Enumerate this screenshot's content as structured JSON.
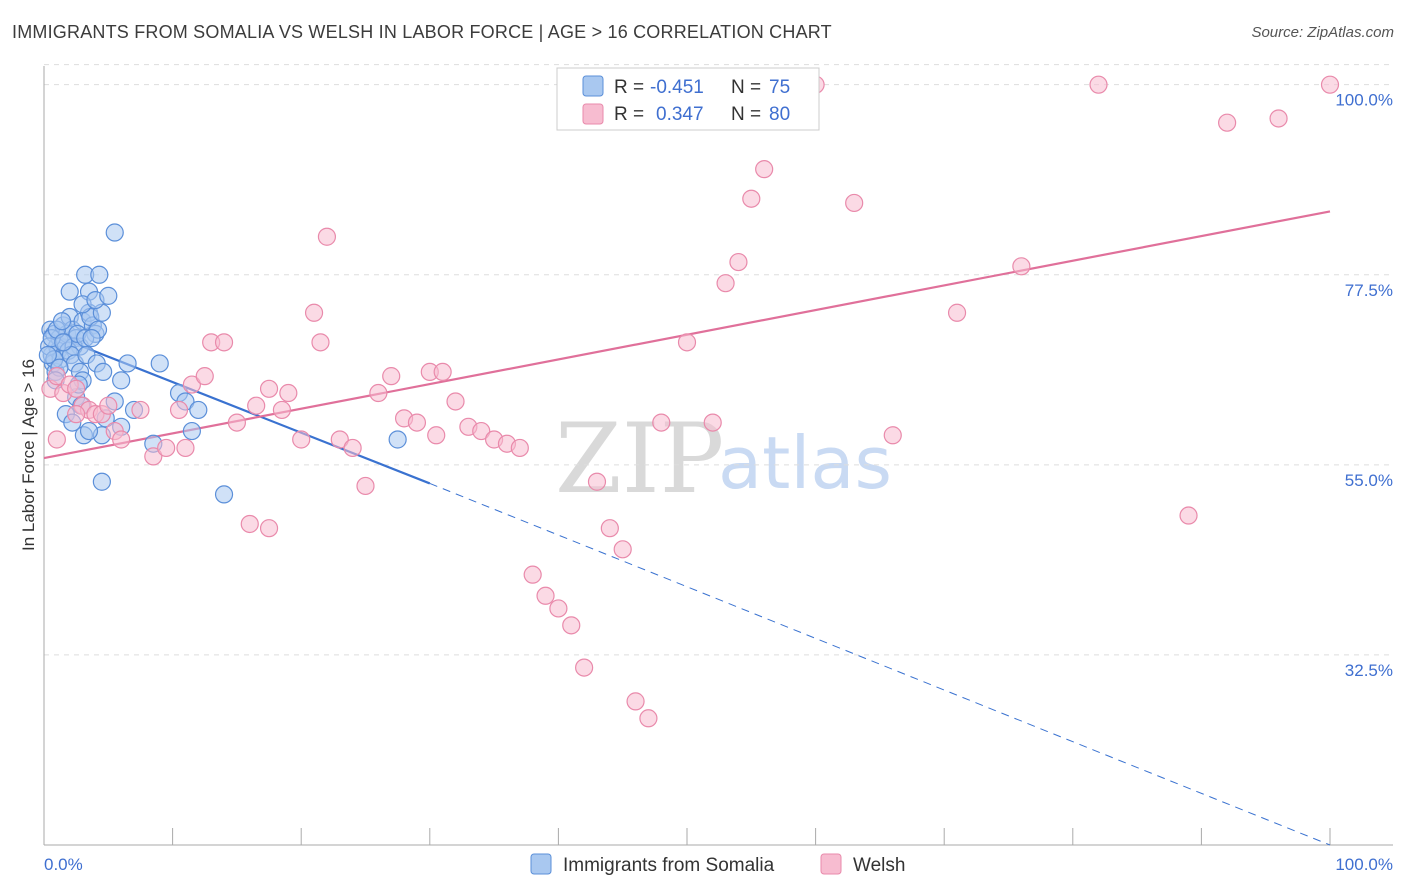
{
  "title": "IMMIGRANTS FROM SOMALIA VS WELSH IN LABOR FORCE | AGE > 16 CORRELATION CHART",
  "source": "Source: ZipAtlas.com",
  "watermark": {
    "zip": "ZIP",
    "atlas": "atlas"
  },
  "colors": {
    "blue_fill": "#a9c8f0",
    "blue_stroke": "#5b8fd9",
    "blue_line": "#3a72d0",
    "pink_fill": "#f7bcd0",
    "pink_stroke": "#e98aab",
    "pink_line": "#e0709a",
    "grid": "#dddddd",
    "tick_text": "#3f6fd0"
  },
  "legend": {
    "series1": {
      "r_label": "R =",
      "r_value": "-0.451",
      "n_label": "N =",
      "n_value": "75"
    },
    "series2": {
      "r_label": "R =",
      "r_value": "0.347",
      "n_label": "N =",
      "n_value": "80"
    }
  },
  "chart_data": {
    "type": "scatter",
    "title": "IMMIGRANTS FROM SOMALIA VS WELSH IN LABOR FORCE | AGE > 16 CORRELATION CHART",
    "xlabel": "",
    "ylabel": "In Labor Force | Age > 16",
    "xlim": [
      0,
      100
    ],
    "ylim": [
      10,
      101.5
    ],
    "x_tick_labels": [
      "0.0%",
      "100.0%"
    ],
    "y_ticks": [
      32.5,
      55.0,
      77.5,
      100.0
    ],
    "y_tick_labels": [
      "32.5%",
      "55.0%",
      "77.5%",
      "100.0%"
    ],
    "grid": "horizontal dashed",
    "legend_position": "top-center",
    "series": [
      {
        "name": "Immigrants from Somalia",
        "r": -0.451,
        "n": 75,
        "trend": {
          "x0": 0,
          "y0": 70.8,
          "x1": 30,
          "y1": 52.8,
          "dashed_to_x": 100,
          "dashed_to_y": 10.0
        },
        "points": [
          [
            0.5,
            71
          ],
          [
            0.8,
            70.5
          ],
          [
            1.0,
            69
          ],
          [
            1.2,
            70
          ],
          [
            0.6,
            68
          ],
          [
            1.5,
            71.5
          ],
          [
            1.8,
            70.5
          ],
          [
            2.0,
            72.5
          ],
          [
            2.2,
            71
          ],
          [
            2.5,
            70
          ],
          [
            0.7,
            67
          ],
          [
            1.1,
            68.5
          ],
          [
            1.6,
            69.5
          ],
          [
            2.8,
            69
          ],
          [
            3.0,
            72
          ],
          [
            3.5,
            73
          ],
          [
            3.8,
            71.5
          ],
          [
            4.0,
            70.5
          ],
          [
            0.9,
            66
          ],
          [
            1.3,
            67.5
          ],
          [
            1.9,
            68.5
          ],
          [
            2.3,
            69
          ],
          [
            2.6,
            70.5
          ],
          [
            3.2,
            70
          ],
          [
            3.6,
            72.5
          ],
          [
            4.2,
            71
          ],
          [
            4.5,
            73
          ],
          [
            2.0,
            75.5
          ],
          [
            3.5,
            75.5
          ],
          [
            3.2,
            77.5
          ],
          [
            4.3,
            77.5
          ],
          [
            3.0,
            74
          ],
          [
            4.0,
            74.5
          ],
          [
            0.4,
            69
          ],
          [
            0.6,
            70
          ],
          [
            1.0,
            71
          ],
          [
            1.4,
            72
          ],
          [
            2.1,
            68
          ],
          [
            2.4,
            67
          ],
          [
            2.8,
            66
          ],
          [
            3.3,
            68
          ],
          [
            3.7,
            70
          ],
          [
            4.1,
            67
          ],
          [
            4.6,
            66
          ],
          [
            5.0,
            75
          ],
          [
            6.5,
            67
          ],
          [
            9.0,
            67
          ],
          [
            6.0,
            65
          ],
          [
            3.0,
            65
          ],
          [
            2.5,
            63
          ],
          [
            1.7,
            61
          ],
          [
            2.9,
            62
          ],
          [
            4.8,
            60.5
          ],
          [
            5.5,
            62.5
          ],
          [
            7.0,
            61.5
          ],
          [
            10.5,
            63.5
          ],
          [
            11.0,
            62.5
          ],
          [
            11.5,
            59
          ],
          [
            12.0,
            61.5
          ],
          [
            5.5,
            82.5
          ],
          [
            0.8,
            67.5
          ],
          [
            1.2,
            66.5
          ],
          [
            2.7,
            64.5
          ],
          [
            0.3,
            68
          ],
          [
            0.9,
            65
          ],
          [
            1.5,
            69.5
          ],
          [
            3.1,
            58.5
          ],
          [
            4.5,
            58.5
          ],
          [
            8.5,
            57.5
          ],
          [
            4.5,
            53
          ],
          [
            14.0,
            51.5
          ],
          [
            27.5,
            58
          ],
          [
            3.5,
            59
          ],
          [
            6.0,
            59.5
          ],
          [
            2.2,
            60
          ]
        ]
      },
      {
        "name": "Welsh",
        "r": 0.347,
        "n": 80,
        "trend": {
          "x0": 0,
          "y0": 55.8,
          "x1": 100,
          "y1": 85.0
        },
        "points": [
          [
            0.5,
            64
          ],
          [
            1.0,
            65.5
          ],
          [
            1.5,
            63.5
          ],
          [
            2.0,
            64.5
          ],
          [
            2.5,
            64
          ],
          [
            3.0,
            62
          ],
          [
            3.5,
            61.5
          ],
          [
            4.0,
            61
          ],
          [
            4.5,
            61
          ],
          [
            5.5,
            59
          ],
          [
            6.0,
            58
          ],
          [
            7.5,
            61.5
          ],
          [
            8.5,
            56
          ],
          [
            9.5,
            57
          ],
          [
            10.5,
            61.5
          ],
          [
            11.0,
            57
          ],
          [
            11.5,
            64.5
          ],
          [
            12.5,
            65.5
          ],
          [
            13.0,
            69.5
          ],
          [
            14.0,
            69.5
          ],
          [
            15.0,
            60
          ],
          [
            16.5,
            62
          ],
          [
            17.5,
            64
          ],
          [
            18.5,
            61.5
          ],
          [
            19.0,
            63.5
          ],
          [
            20.0,
            58
          ],
          [
            21.0,
            73
          ],
          [
            21.5,
            69.5
          ],
          [
            22.0,
            82
          ],
          [
            23.0,
            58
          ],
          [
            24.0,
            57
          ],
          [
            25.0,
            52.5
          ],
          [
            26.0,
            63.5
          ],
          [
            27.0,
            65.5
          ],
          [
            28.0,
            60.5
          ],
          [
            29.0,
            60
          ],
          [
            30.5,
            58.5
          ],
          [
            30.0,
            66
          ],
          [
            31.0,
            66
          ],
          [
            32.0,
            62.5
          ],
          [
            33.0,
            59.5
          ],
          [
            34.0,
            59
          ],
          [
            35.0,
            58
          ],
          [
            36.0,
            57.5
          ],
          [
            37.0,
            57
          ],
          [
            38.0,
            42
          ],
          [
            39.0,
            39.5
          ],
          [
            40.0,
            38
          ],
          [
            41.0,
            36
          ],
          [
            42.0,
            31
          ],
          [
            43.0,
            53
          ],
          [
            44.0,
            47.5
          ],
          [
            45.0,
            45
          ],
          [
            46.0,
            27
          ],
          [
            47.0,
            25
          ],
          [
            48.0,
            60
          ],
          [
            50.0,
            69.5
          ],
          [
            52.0,
            60
          ],
          [
            53.0,
            76.5
          ],
          [
            54.0,
            79
          ],
          [
            55.0,
            86.5
          ],
          [
            56.0,
            90
          ],
          [
            57.0,
            100
          ],
          [
            58.0,
            100
          ],
          [
            59.0,
            100
          ],
          [
            60.0,
            100
          ],
          [
            63.0,
            86
          ],
          [
            66.0,
            58.5
          ],
          [
            71.0,
            73
          ],
          [
            76.0,
            78.5
          ],
          [
            82.0,
            100
          ],
          [
            89.0,
            49
          ],
          [
            92.0,
            95.5
          ],
          [
            96.0,
            96
          ],
          [
            100.0,
            100
          ],
          [
            1.0,
            58
          ],
          [
            2.5,
            61
          ],
          [
            5.0,
            62
          ],
          [
            16.0,
            48
          ],
          [
            17.5,
            47.5
          ]
        ]
      }
    ]
  },
  "bottom_legend": [
    {
      "label": "Immigrants from Somalia",
      "color": "blue"
    },
    {
      "label": "Welsh",
      "color": "pink"
    }
  ]
}
